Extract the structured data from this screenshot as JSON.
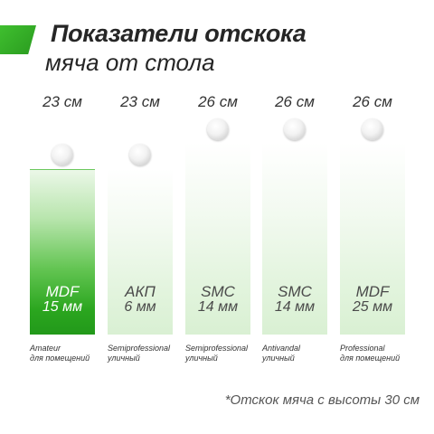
{
  "header": {
    "title_line1": "Показатели отскока",
    "title_line2": "мяча от стола",
    "accent_color": "#2f9f22"
  },
  "columns": [
    {
      "height_label": "23 см",
      "material": "MDF",
      "thickness": "15 мм",
      "type_line1": "Amateur",
      "type_line2": "для помещений",
      "active": true,
      "bounce_cm": 23
    },
    {
      "height_label": "23 см",
      "material": "АКП",
      "thickness": "6 мм",
      "type_line1": "Semiprofessional",
      "type_line2": "уличный",
      "active": false,
      "bounce_cm": 23
    },
    {
      "height_label": "26 см",
      "material": "SMC",
      "thickness": "14 мм",
      "type_line1": "Semiprofessional",
      "type_line2": "уличный",
      "active": false,
      "bounce_cm": 26
    },
    {
      "height_label": "26 см",
      "material": "SMC",
      "thickness": "14 мм",
      "type_line1": "Antivandal",
      "type_line2": "уличный",
      "active": false,
      "bounce_cm": 26
    },
    {
      "height_label": "26 см",
      "material": "MDF",
      "thickness": "25 мм",
      "type_line1": "Professional",
      "type_line2": "для помещений",
      "active": false,
      "bounce_cm": 26
    }
  ],
  "footnote": "*Отскок мяча с высоты 30 см",
  "icons": {
    "ball": "ping-pong-ball-icon"
  }
}
